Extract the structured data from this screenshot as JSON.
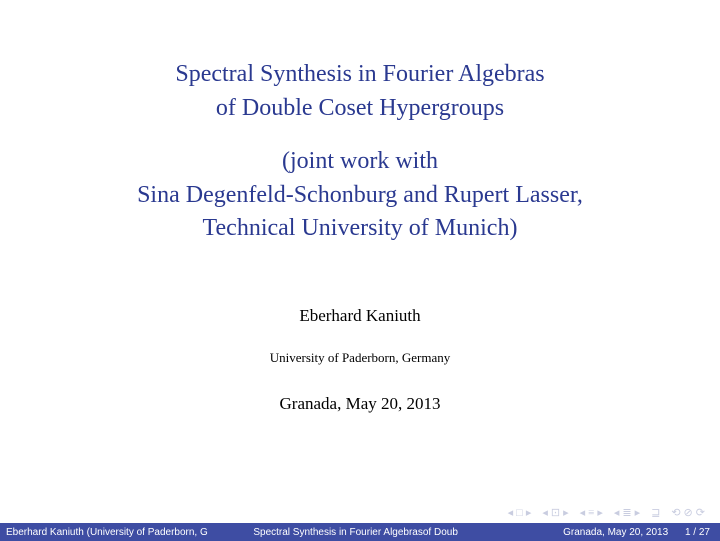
{
  "title": {
    "line1": "Spectral Synthesis in Fourier Algebras",
    "line2": "of Double Coset Hypergroups",
    "color": "#2a3990",
    "fontsize": 24
  },
  "subtitle": {
    "line1": "(joint work with",
    "line2": "Sina Degenfeld-Schonburg and Rupert Lasser,",
    "line3": "Technical University of Munich)",
    "color": "#2a3990",
    "fontsize": 24
  },
  "author": {
    "name": "Eberhard Kaniuth",
    "fontsize": 17,
    "color": "#000000"
  },
  "affiliation": {
    "text": "University of Paderborn, Germany",
    "fontsize": 13,
    "color": "#000000"
  },
  "date": {
    "text": "Granada, May 20, 2013",
    "fontsize": 17,
    "color": "#000000"
  },
  "nav": {
    "symbols": [
      "◂□▸",
      "◂⊡▸",
      "◂≡▸",
      "◂≣▸",
      "⊒",
      "⟲⊘⟳"
    ],
    "color": "#c9cde0"
  },
  "footline": {
    "background_color": "#3e4da3",
    "text_color": "#ffffff",
    "fontsize": 10,
    "author_short": "Eberhard Kaniuth (University of Paderborn, G",
    "title_short": "Spectral Synthesis in Fourier Algebrasof Doub",
    "date_short": "Granada, May 20, 2013",
    "page_current": "1",
    "page_total": "27",
    "page_sep": " / "
  }
}
